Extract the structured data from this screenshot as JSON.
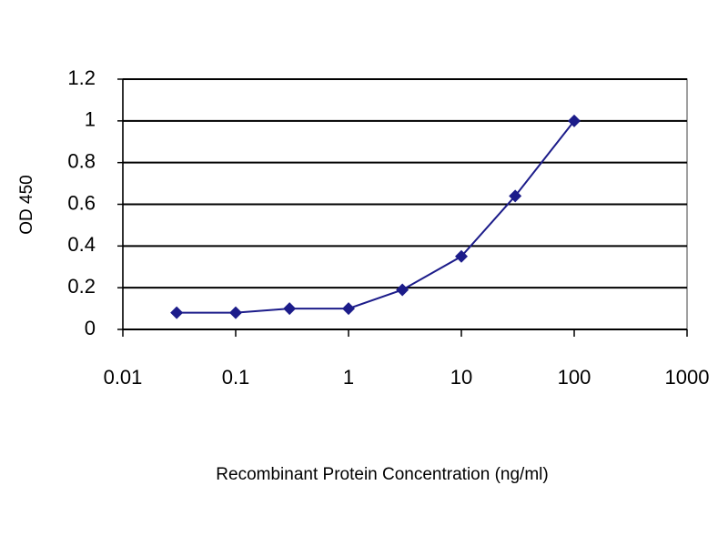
{
  "chart_data": {
    "type": "line",
    "x_label": "Recombinant Protein Concentration (ng/ml)",
    "y_label": "OD 450",
    "x": [
      0.03,
      0.1,
      0.3,
      1,
      3,
      10,
      30,
      100
    ],
    "series": [
      {
        "name": "OD 450",
        "color": "#1c1c8a",
        "values": [
          0.08,
          0.08,
          0.1,
          0.1,
          0.19,
          0.35,
          0.64,
          1.0
        ]
      }
    ],
    "xlim": [
      0.01,
      1000
    ],
    "xticks": [
      0.01,
      0.1,
      1,
      10,
      100,
      1000
    ],
    "xscale": "log",
    "ylim": [
      0,
      1.2
    ],
    "yticks": [
      0,
      0.2,
      0.4,
      0.6,
      0.8,
      1,
      1.2
    ],
    "grid": true,
    "legend": false
  }
}
